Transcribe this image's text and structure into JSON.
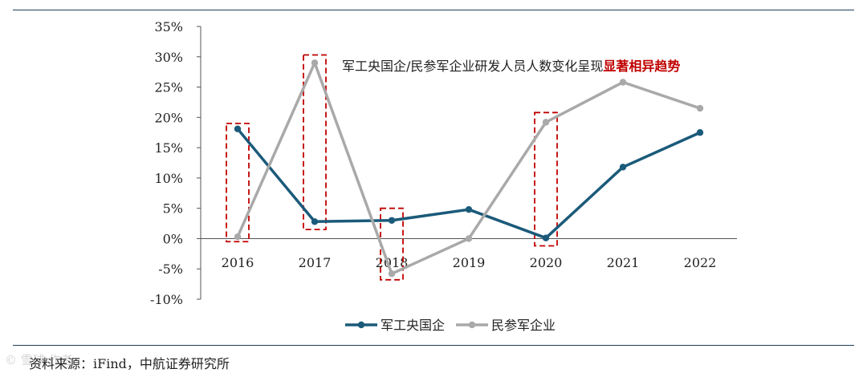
{
  "chart_data": {
    "type": "line",
    "categories": [
      "2016",
      "2017",
      "2018",
      "2019",
      "2020",
      "2021",
      "2022"
    ],
    "series": [
      {
        "name": "军工央国企",
        "values": [
          18.1,
          2.8,
          3.0,
          4.8,
          0.1,
          11.8,
          17.5
        ],
        "color": "#1b5a7a"
      },
      {
        "name": "民参军企业",
        "values": [
          0.3,
          29.0,
          -5.8,
          0.0,
          19.2,
          25.8,
          21.5
        ],
        "color": "#a9a9a9"
      }
    ],
    "ylim": [
      -10,
      35
    ],
    "yticks": [
      -10,
      -5,
      0,
      5,
      10,
      15,
      20,
      25,
      30,
      35
    ],
    "ytick_labels": [
      "-10%",
      "-5%",
      "0%",
      "5%",
      "10%",
      "15%",
      "20%",
      "25%",
      "30%",
      "35%"
    ],
    "grid": false,
    "legend_position": "bottom",
    "annotation": {
      "text_main": "军工央国企/民参军企业研发人员人数变化呈现",
      "text_highlight": "显著相异趋势",
      "highlight_color": "#c00000"
    },
    "highlight_boxes": [
      {
        "category": "2016",
        "y_range": [
          -0.5,
          19.0
        ]
      },
      {
        "category": "2017",
        "y_range": [
          1.5,
          30.3
        ]
      },
      {
        "category": "2018",
        "y_range": [
          -6.8,
          5.0
        ]
      },
      {
        "category": "2020",
        "y_range": [
          -1.2,
          20.8
        ]
      }
    ],
    "box_color": "#c00000"
  },
  "footer": {
    "source": "资料来源：iFind，中航证券研究所",
    "watermark": "© 雪球·作者"
  }
}
